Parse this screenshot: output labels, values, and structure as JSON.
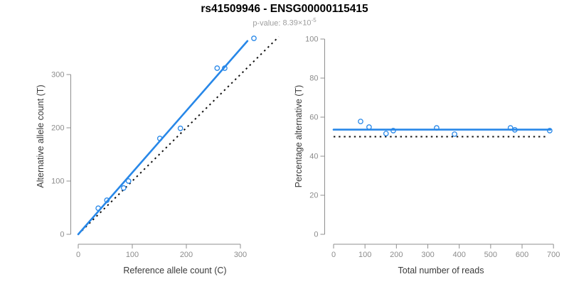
{
  "title": "rs41509946 - ENSG00000115415",
  "subtitle": {
    "label": "p-value:",
    "mantissa": "8.39",
    "multiply_sign": "×",
    "base": "10",
    "exponent": "-5"
  },
  "colors": {
    "accent_blue": "#2787E8",
    "reference_black": "#111111",
    "axis_line": "#8f8f8f",
    "tick_label": "#8c8c8c",
    "axis_title": "#3a3a3a",
    "title_color": "#000000",
    "subtitle_color": "#9e9e9e",
    "background": "#ffffff"
  },
  "chart_data": [
    {
      "type": "scatter",
      "name": "allele-counts",
      "xlabel": "Reference allele count (C)",
      "ylabel": "Alternative allele count (T)",
      "xlim": [
        0,
        375
      ],
      "ylim": [
        0,
        380
      ],
      "xticks": [
        0,
        100,
        200,
        300
      ],
      "yticks": [
        0,
        100,
        200,
        300
      ],
      "grid": false,
      "legend": "none",
      "points": [
        [
          37,
          49
        ],
        [
          53,
          64
        ],
        [
          84,
          87
        ],
        [
          93,
          100
        ],
        [
          151,
          180
        ],
        [
          189,
          199
        ],
        [
          257,
          312
        ],
        [
          271,
          312
        ],
        [
          325,
          368
        ]
      ],
      "fit_line": {
        "style": "solid-blue",
        "x": [
          0,
          313
        ],
        "y": [
          0,
          363
        ]
      },
      "reference_line": {
        "style": "dotted-black",
        "x": [
          0,
          371
        ],
        "y": [
          0,
          371
        ]
      }
    },
    {
      "type": "scatter",
      "name": "percentage-vs-depth",
      "xlabel": "Total number of reads",
      "ylabel": "Percentage alternative (T)",
      "xlim": [
        0,
        710
      ],
      "ylim": [
        0,
        100
      ],
      "xticks": [
        0,
        100,
        200,
        300,
        400,
        500,
        600,
        700
      ],
      "yticks": [
        0,
        20,
        40,
        60,
        80,
        100
      ],
      "grid": false,
      "legend": "none",
      "points": [
        [
          86,
          57.8
        ],
        [
          113,
          54.9
        ],
        [
          167,
          51.6
        ],
        [
          190,
          53.1
        ],
        [
          328,
          54.5
        ],
        [
          385,
          51.3
        ],
        [
          563,
          54.5
        ],
        [
          577,
          53.5
        ],
        [
          688,
          53.1
        ]
      ],
      "fit_line": {
        "style": "solid-blue",
        "x": [
          0,
          690
        ],
        "y": [
          53.6,
          53.6
        ]
      },
      "reference_line": {
        "style": "dotted-black",
        "x": [
          0,
          683
        ],
        "y": [
          50,
          50
        ]
      }
    }
  ]
}
